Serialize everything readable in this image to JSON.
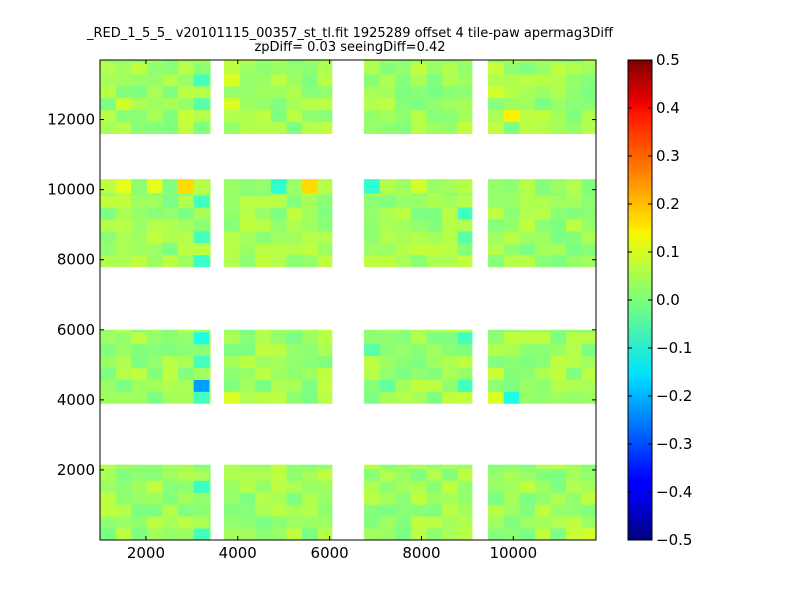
{
  "chart_data": {
    "type": "heatmap",
    "title": "_RED_1_5_5_ v20101115_00357_st_tl.fit 1925289 offset 4 tile-paw apermag3Diff",
    "subtitle": "zpDiff= 0.03 seeingDiff=0.42",
    "xlabel": "",
    "ylabel": "",
    "xlim": [
      1000,
      11800
    ],
    "ylim": [
      0,
      13700
    ],
    "x_ticks": [
      "2000",
      "4000",
      "6000",
      "8000",
      "10000"
    ],
    "y_ticks": [
      "2000",
      "4000",
      "6000",
      "8000",
      "10000",
      "12000"
    ],
    "x_tick_values": [
      2000,
      4000,
      6000,
      8000,
      10000
    ],
    "y_tick_values": [
      2000,
      4000,
      6000,
      8000,
      10000,
      12000
    ],
    "colorbar": {
      "colormap": "jet",
      "range": [
        -0.5,
        0.5
      ],
      "ticks": [
        "0.5",
        "0.4",
        "0.3",
        "0.2",
        "0.1",
        "0.0",
        "−0.1",
        "−0.2",
        "−0.3",
        "−0.4",
        "−0.5"
      ],
      "tick_values": [
        0.5,
        0.4,
        0.3,
        0.2,
        0.1,
        0.0,
        -0.1,
        -0.2,
        -0.3,
        -0.4,
        -0.5
      ]
    },
    "cell_size": 340,
    "detector_columns": [
      {
        "x_range": [
          1000,
          3050
        ],
        "wide_x_range": [
          1000,
          3400
        ]
      },
      {
        "x_range": [
          3700,
          6050
        ]
      },
      {
        "x_range": [
          6750,
          9100
        ]
      },
      {
        "x_range": [
          9450,
          11800
        ]
      }
    ],
    "detector_rows": [
      {
        "y_range": [
          0,
          2150
        ]
      },
      {
        "y_range": [
          3900,
          6000
        ]
      },
      {
        "y_range": [
          7800,
          9900
        ],
        "top_notch_y": 10300
      },
      {
        "y_range": [
          11600,
          13700
        ]
      }
    ],
    "base_value": 0.03,
    "special_cells": [
      {
        "x": 2100,
        "y": 10100,
        "value": 0.1
      },
      {
        "x": 2700,
        "y": 10100,
        "value": 0.16
      },
      {
        "x": 5500,
        "y": 10100,
        "value": 0.16
      },
      {
        "x": 5000,
        "y": 10100,
        "value": -0.08
      },
      {
        "x": 7000,
        "y": 10100,
        "value": -0.08
      },
      {
        "x": 7800,
        "y": 10100,
        "value": 0.08
      },
      {
        "x": 1500,
        "y": 10100,
        "value": 0.1
      },
      {
        "x": 3200,
        "y": 4500,
        "value": -0.22
      },
      {
        "x": 3200,
        "y": 5800,
        "value": -0.1
      },
      {
        "x": 3200,
        "y": 5200,
        "value": -0.06
      },
      {
        "x": 3200,
        "y": 4000,
        "value": -0.06
      },
      {
        "x": 3200,
        "y": 8100,
        "value": -0.07
      },
      {
        "x": 3200,
        "y": 8700,
        "value": -0.06
      },
      {
        "x": 3200,
        "y": 9500,
        "value": -0.06
      },
      {
        "x": 3200,
        "y": 1500,
        "value": -0.07
      },
      {
        "x": 3200,
        "y": 300,
        "value": -0.06
      },
      {
        "x": 3200,
        "y": 13000,
        "value": -0.06
      },
      {
        "x": 3200,
        "y": 12300,
        "value": -0.04
      },
      {
        "x": 9800,
        "y": 12200,
        "value": 0.14
      },
      {
        "x": 9700,
        "y": 12900,
        "value": 0.08
      },
      {
        "x": 9700,
        "y": 13400,
        "value": 0.07
      },
      {
        "x": 9700,
        "y": 4000,
        "value": 0.09
      },
      {
        "x": 9700,
        "y": 4900,
        "value": 0.07
      },
      {
        "x": 10000,
        "y": 4000,
        "value": -0.1
      },
      {
        "x": 8900,
        "y": 4500,
        "value": -0.06
      },
      {
        "x": 8900,
        "y": 5200,
        "value": 0.06
      },
      {
        "x": 8900,
        "y": 5800,
        "value": -0.06
      },
      {
        "x": 8900,
        "y": 9300,
        "value": -0.06
      },
      {
        "x": 8900,
        "y": 8700,
        "value": -0.04
      },
      {
        "x": 3900,
        "y": 13000,
        "value": 0.09
      },
      {
        "x": 3900,
        "y": 12600,
        "value": 0.09
      },
      {
        "x": 3900,
        "y": 4000,
        "value": 0.09
      },
      {
        "x": 1600,
        "y": 12600,
        "value": 0.08
      },
      {
        "x": 2700,
        "y": 12000,
        "value": 0.07
      },
      {
        "x": 11600,
        "y": 300,
        "value": 0.08
      },
      {
        "x": 11200,
        "y": 300,
        "value": 0.07
      },
      {
        "x": 4500,
        "y": 10100,
        "value": 0.02
      },
      {
        "x": 7100,
        "y": 4500,
        "value": -0.03
      },
      {
        "x": 6900,
        "y": 5500,
        "value": -0.04
      }
    ]
  }
}
